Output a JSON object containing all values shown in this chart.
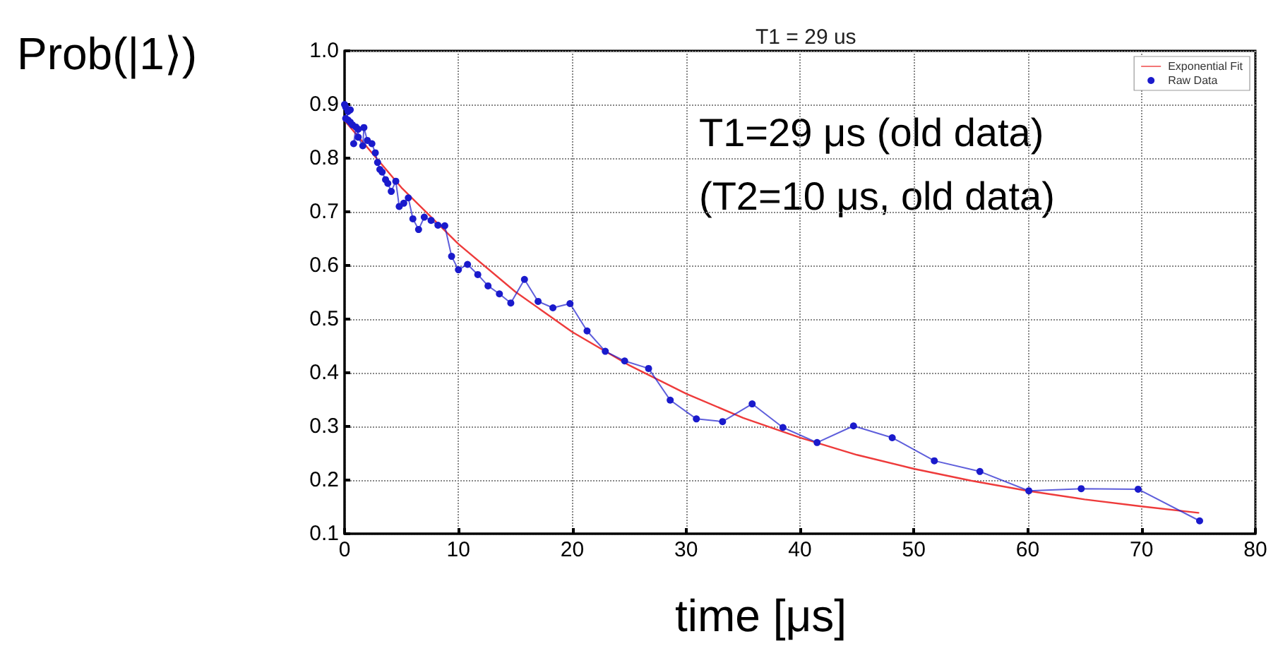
{
  "chart_data": {
    "type": "line",
    "title": "T1 = 29 us",
    "xlabel": "time [μs]",
    "ylabel": "Prob(|1⟩)",
    "annotations": [
      "T1=29 μs (old data)",
      "(T2=10 μs, old data)"
    ],
    "xlim": [
      0,
      80
    ],
    "xticks": [
      0,
      10,
      20,
      30,
      40,
      50,
      60,
      70,
      80
    ],
    "ylim": [
      0.1,
      1.0
    ],
    "yticks": [
      0.1,
      0.2,
      0.3,
      0.4,
      0.5,
      0.6,
      0.7,
      0.8,
      0.9,
      {
        "value": 1.0,
        "label": "1.0"
      }
    ],
    "grid": true,
    "legend": "top right",
    "series": [
      {
        "name": "Exponential Fit",
        "color": "#ee3b3b",
        "marker": "none",
        "x": [
          0,
          5,
          10,
          15,
          20,
          25,
          30,
          35,
          40,
          45,
          50,
          55,
          60,
          65,
          70,
          75
        ],
        "values": [
          0.87,
          0.745,
          0.64,
          0.551,
          0.476,
          0.414,
          0.361,
          0.316,
          0.279,
          0.247,
          0.221,
          0.199,
          0.18,
          0.164,
          0.151,
          0.139
        ]
      },
      {
        "name": "Raw Data",
        "color": "#1a1acc",
        "marker": "circle",
        "x": [
          0.0,
          0.1,
          0.3,
          0.5,
          0.1,
          0.3,
          0.5,
          0.7,
          1.0,
          0.8,
          1.2,
          1.2,
          1.6,
          1.7,
          2.0,
          2.4,
          2.7,
          2.9,
          3.1,
          3.3,
          3.6,
          3.8,
          4.1,
          4.5,
          4.8,
          5.2,
          5.6,
          6.0,
          6.5,
          7.0,
          7.6,
          8.2,
          8.8,
          9.4,
          10.0,
          10.8,
          11.7,
          12.6,
          13.6,
          14.6,
          15.8,
          17.0,
          18.3,
          19.8,
          21.3,
          22.9,
          24.6,
          26.7,
          28.6,
          30.9,
          33.2,
          35.8,
          38.5,
          41.5,
          44.7,
          48.1,
          51.8,
          55.8,
          60.1,
          64.7,
          69.7,
          75.1
        ],
        "values": [
          0.9,
          0.895,
          0.887,
          0.89,
          0.874,
          0.871,
          0.867,
          0.862,
          0.858,
          0.827,
          0.854,
          0.839,
          0.823,
          0.857,
          0.833,
          0.827,
          0.81,
          0.792,
          0.779,
          0.774,
          0.76,
          0.753,
          0.738,
          0.757,
          0.71,
          0.716,
          0.726,
          0.687,
          0.667,
          0.69,
          0.684,
          0.675,
          0.674,
          0.617,
          0.592,
          0.602,
          0.583,
          0.562,
          0.547,
          0.53,
          0.574,
          0.533,
          0.521,
          0.529,
          0.478,
          0.44,
          0.422,
          0.408,
          0.349,
          0.314,
          0.309,
          0.342,
          0.298,
          0.27,
          0.301,
          0.279,
          0.236,
          0.216,
          0.18,
          0.184,
          0.183,
          0.124
        ]
      }
    ]
  }
}
